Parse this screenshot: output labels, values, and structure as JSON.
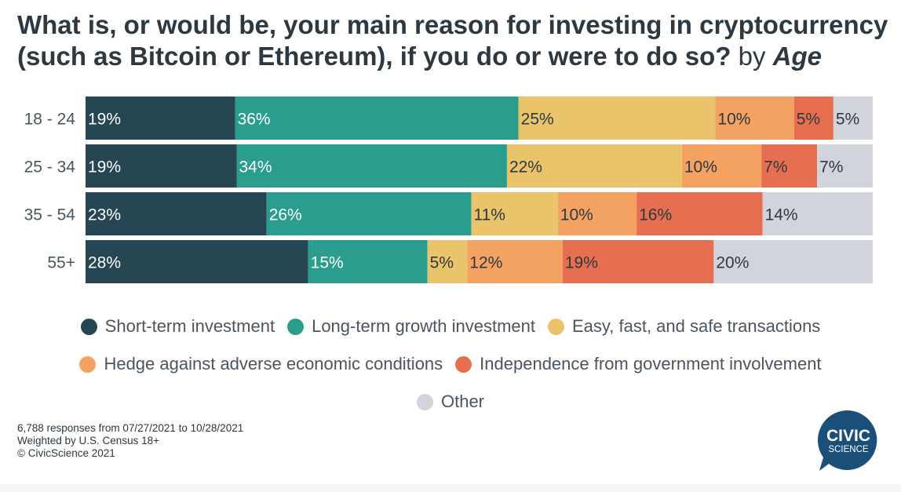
{
  "title": {
    "main": "What is, or would be, your main reason for investing in cryptocurrency (such as Bitcoin or Ethereum), if you do or were to do so?",
    "by": "by",
    "group": "Age"
  },
  "chart_data": {
    "type": "bar",
    "orientation": "horizontal",
    "stacked": true,
    "normalized_percent": true,
    "categories": [
      "18 - 24",
      "25 - 34",
      "35 - 54",
      "55+"
    ],
    "series": [
      {
        "name": "Short-term investment",
        "color": "#264653",
        "values": [
          19,
          19,
          23,
          28
        ]
      },
      {
        "name": "Long-term growth investment",
        "color": "#2a9d8f",
        "values": [
          36,
          34,
          26,
          15
        ]
      },
      {
        "name": "Easy, fast, and safe transactions",
        "color": "#e9c46a",
        "values": [
          25,
          22,
          11,
          5
        ]
      },
      {
        "name": "Hedge against adverse economic conditions",
        "color": "#f4a261",
        "values": [
          10,
          10,
          10,
          12
        ]
      },
      {
        "name": "Independence from government involvement",
        "color": "#e76f51",
        "values": [
          5,
          7,
          16,
          19
        ]
      },
      {
        "name": "Other",
        "color": "#d1d5db",
        "values": [
          5,
          7,
          14,
          20
        ]
      }
    ],
    "legend_position": "bottom",
    "grid": false
  },
  "footnote": {
    "responses": "6,788 responses from 07/27/2021 to 10/28/2021",
    "weighting": "Weighted by U.S. Census 18+",
    "copyright": "© CivicScience 2021"
  },
  "logo": {
    "line1": "CIVIC",
    "line2": "SCIENCE",
    "color": "#1a4f7a"
  }
}
